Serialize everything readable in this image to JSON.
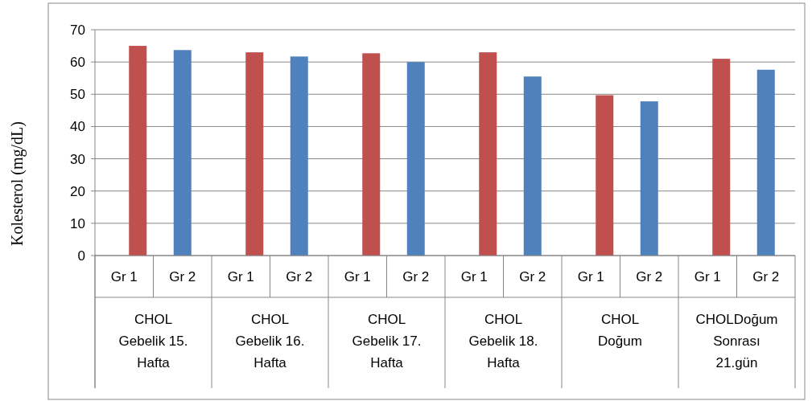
{
  "chart_data": {
    "type": "bar",
    "ylabel": "Kolesterol (mg/dL)",
    "categories": [
      "CHOL\nGebelik 15.\nHafta",
      "CHOL\nGebelik 16.\nHafta",
      "CHOL\nGebelik 17.\nHafta",
      "CHOL\nGebelik 18.\nHafta",
      "CHOL\nDoğum",
      "CHOLDoğum\nSonrası\n21.gün"
    ],
    "series": [
      {
        "name": "Gr 1",
        "color": "#c0504d",
        "values": [
          65,
          63,
          62.7,
          63,
          49.7,
          61
        ]
      },
      {
        "name": "Gr 2",
        "color": "#4f81bd",
        "values": [
          63.7,
          61.7,
          60,
          55.5,
          47.8,
          57.6
        ]
      }
    ],
    "ylim": [
      0,
      70
    ],
    "yticks": [
      0,
      10,
      20,
      30,
      40,
      50,
      60,
      70
    ],
    "grid": "y"
  }
}
